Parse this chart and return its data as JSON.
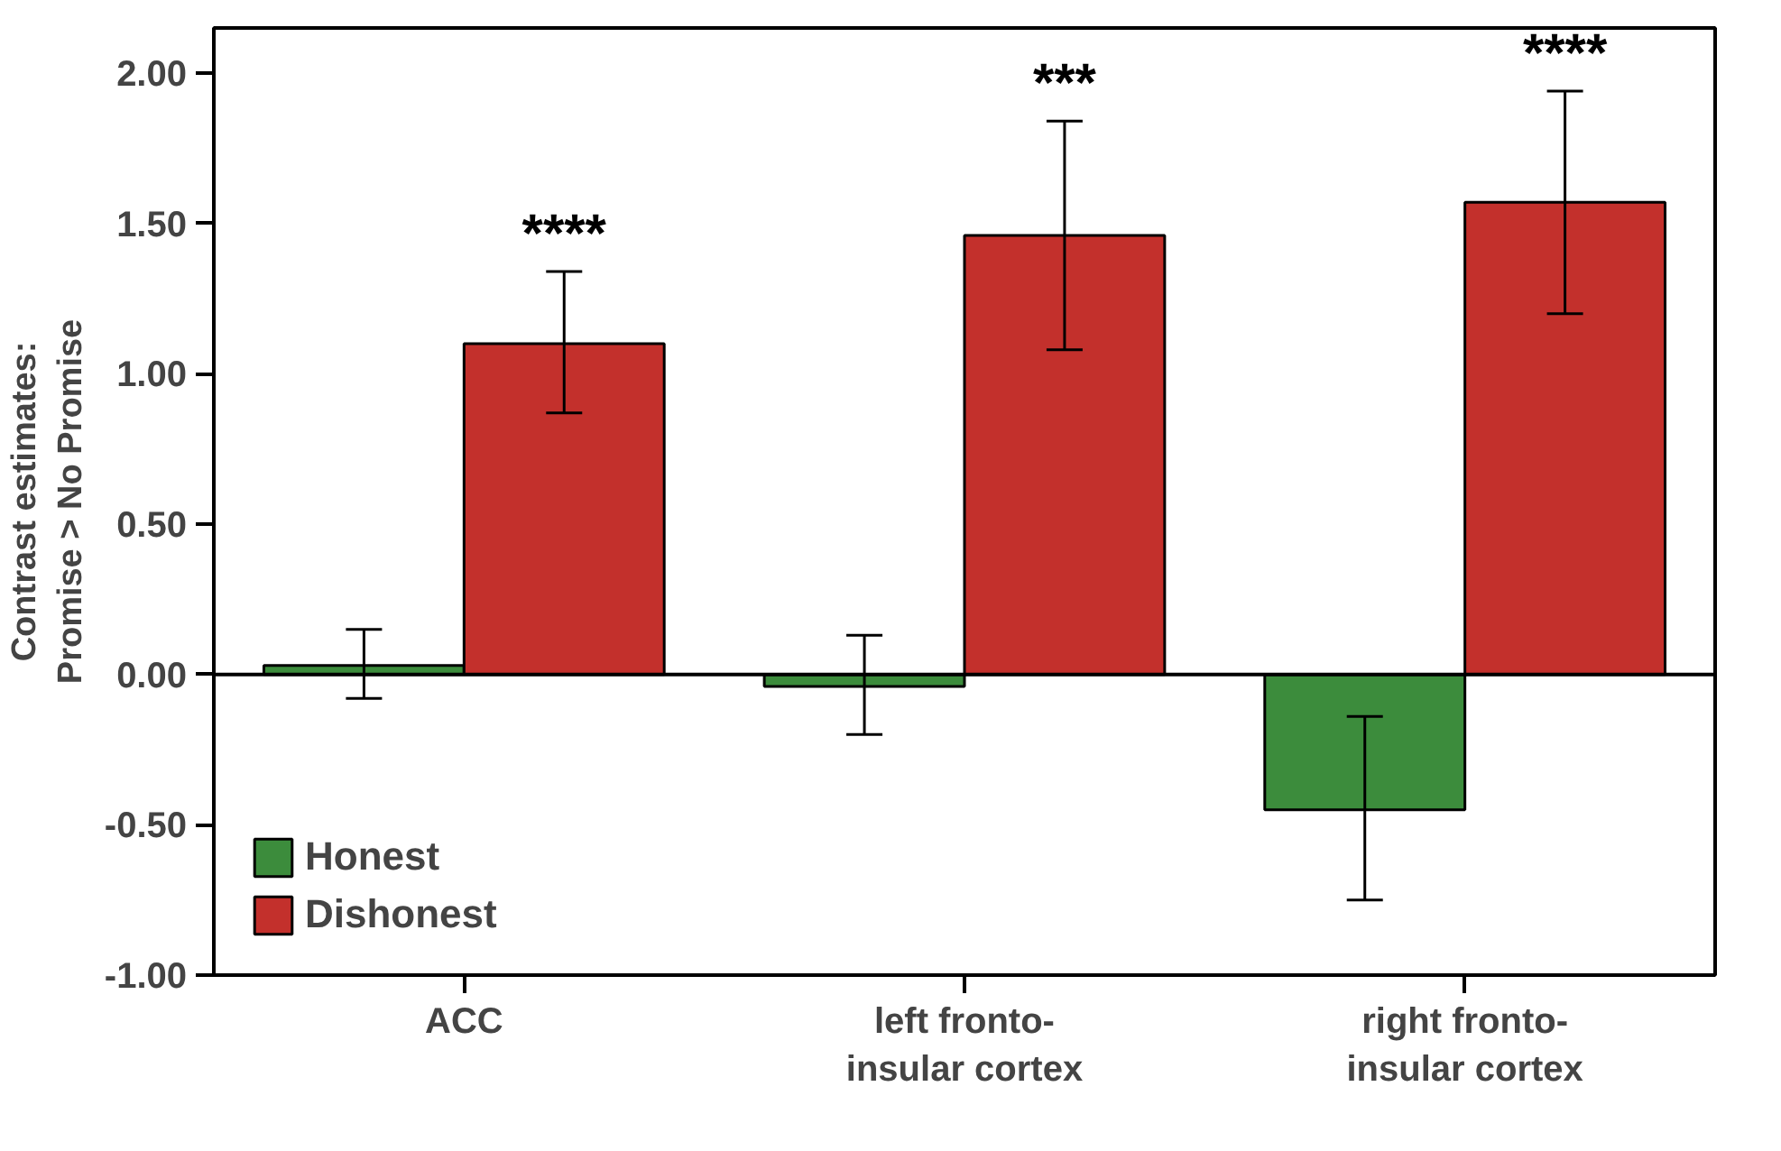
{
  "chart_data": {
    "type": "bar",
    "ylabel": "Contrast estimates:\nPromise > No Promise",
    "categories": [
      "ACC",
      "left fronto-\ninsular cortex",
      "right fronto-\ninsular cortex"
    ],
    "series": [
      {
        "name": "Honest",
        "color": "#3c8c3c",
        "values": [
          0.03,
          -0.04,
          -0.45
        ],
        "errors": [
          [
            -0.08,
            0.15
          ],
          [
            -0.2,
            0.13
          ],
          [
            -0.75,
            -0.14
          ]
        ]
      },
      {
        "name": "Dishonest",
        "color": "#c3302c",
        "values": [
          1.1,
          1.46,
          1.57
        ],
        "errors": [
          [
            0.87,
            1.34
          ],
          [
            1.08,
            1.84
          ],
          [
            1.2,
            1.94
          ]
        ]
      }
    ],
    "annotations": [
      "****",
      "***",
      "****"
    ],
    "ref_lines": [
      {
        "axis": "y",
        "value": 0.0,
        "color": "#000000"
      }
    ],
    "ylim": [
      -1.0,
      2.15
    ],
    "yticks": [
      {
        "value": -1.0,
        "label": "-1.00"
      },
      {
        "value": -0.5,
        "label": "-0.50"
      },
      {
        "value": 0.0,
        "label": "0.00"
      },
      {
        "value": 0.5,
        "label": "0.50"
      },
      {
        "value": 1.0,
        "label": "1.00"
      },
      {
        "value": 1.5,
        "label": "1.50"
      },
      {
        "value": 2.0,
        "label": "2.00"
      }
    ],
    "grid": false,
    "legend": "bottom left"
  }
}
